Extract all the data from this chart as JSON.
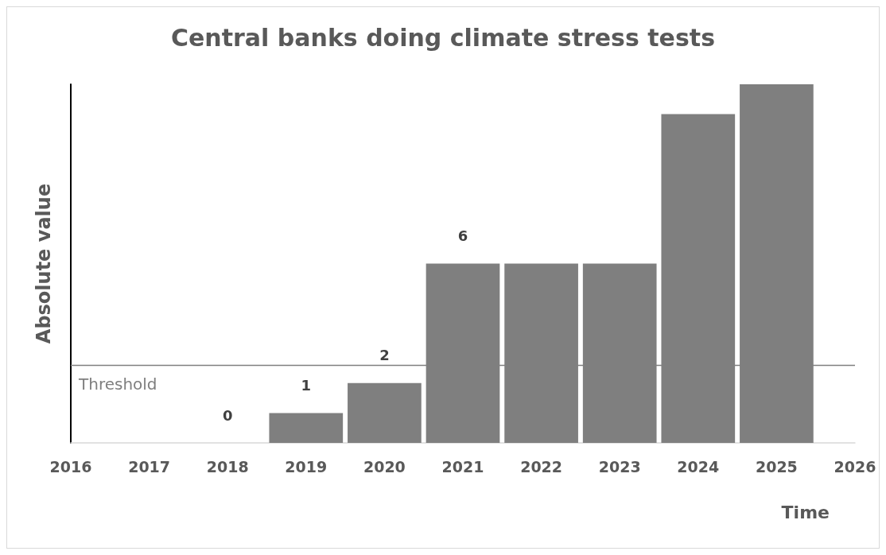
{
  "chart_data": {
    "type": "bar",
    "title": "Central banks doing climate stress tests",
    "xlabel": "Time",
    "ylabel": "Absolute value",
    "x": [
      2018,
      2019,
      2020,
      2021,
      2022,
      2023,
      2024,
      2025
    ],
    "values": [
      0,
      1,
      2,
      6,
      6,
      6,
      11,
      12
    ],
    "value_labels": [
      "0",
      "1",
      "2",
      "6",
      null,
      null,
      null,
      null
    ],
    "color": "#7f7f7f",
    "xlim": [
      2016,
      2026
    ],
    "xticks": [
      2016,
      2017,
      2018,
      2019,
      2020,
      2021,
      2022,
      2023,
      2024,
      2025,
      2026
    ],
    "ref_lines": [
      {
        "axis": "y",
        "value": 2.6,
        "label": "Threshold",
        "color": "#7f7f7f"
      }
    ],
    "tick_labels": "x",
    "grid": false
  }
}
